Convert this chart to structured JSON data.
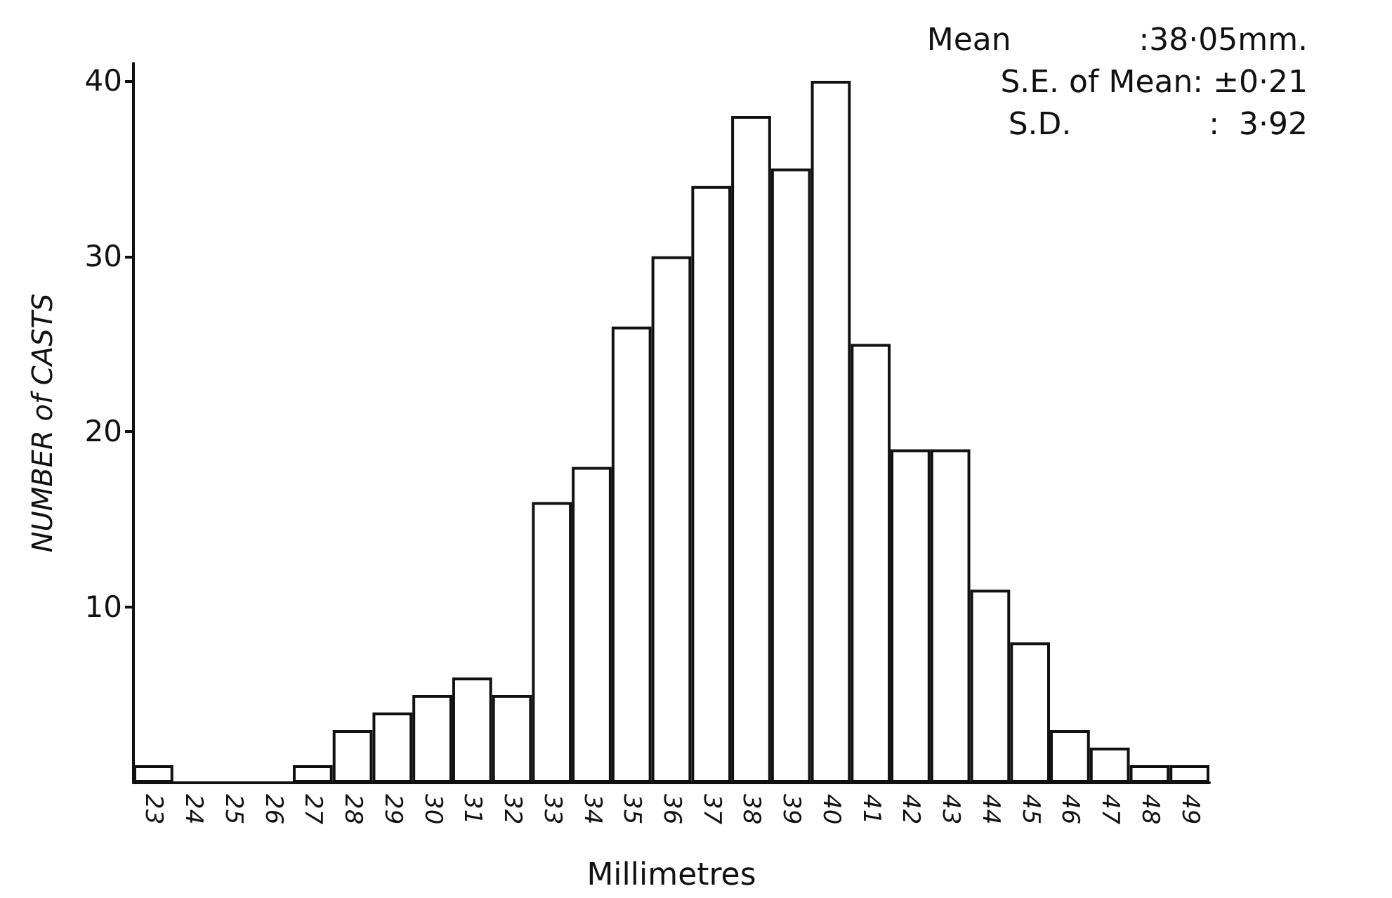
{
  "chart_data": {
    "type": "bar",
    "xlabel": "Millimetres",
    "ylabel": "NUMBER of CASTS",
    "categories": [
      "23",
      "24",
      "25",
      "26",
      "27",
      "28",
      "29",
      "30",
      "31",
      "32",
      "33",
      "34",
      "35",
      "36",
      "37",
      "38",
      "39",
      "40",
      "41",
      "42",
      "43",
      "44",
      "45",
      "46",
      "47",
      "48",
      "49"
    ],
    "values": [
      1,
      0,
      0,
      0,
      1,
      3,
      4,
      5,
      6,
      5,
      16,
      18,
      26,
      30,
      34,
      38,
      35,
      40,
      25,
      19,
      19,
      11,
      8,
      3,
      2,
      1,
      1
    ],
    "color": "#ffffff",
    "ylim": [
      0,
      41
    ],
    "yticks": [
      10,
      20,
      30,
      40
    ],
    "grid": false,
    "annotations": [
      "Mean             :38·05mm.",
      "S.E. of Mean: ±0·21",
      "S.D.              :  3·92"
    ]
  }
}
